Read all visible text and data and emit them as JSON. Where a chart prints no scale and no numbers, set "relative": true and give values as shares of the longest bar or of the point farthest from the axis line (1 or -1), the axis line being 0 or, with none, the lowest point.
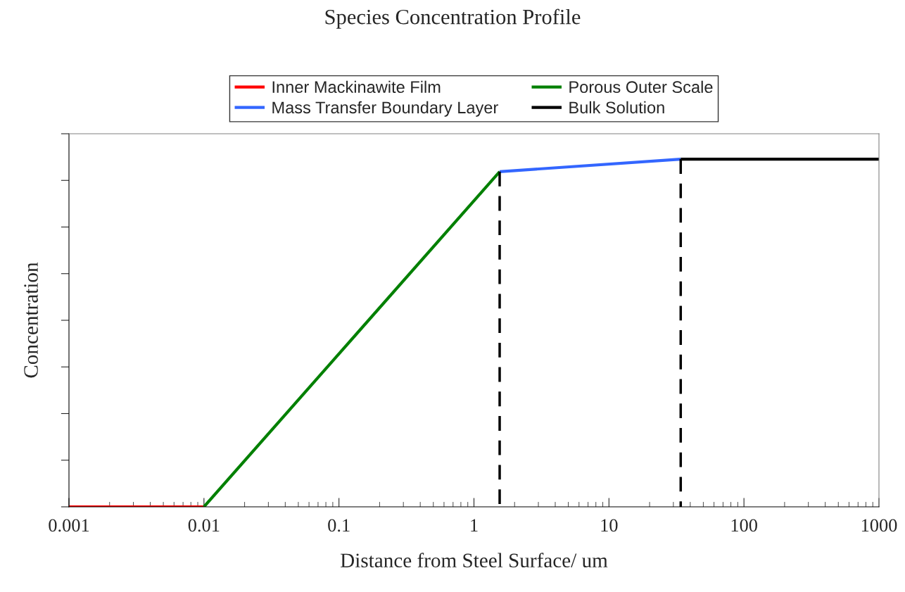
{
  "chart_data": {
    "type": "line",
    "title": "Species Concentration Profile",
    "xlabel": "Distance from Steel Surface/ um",
    "ylabel": "Concentration",
    "relative": true,
    "log": "x",
    "xlim": [
      0.001,
      1000
    ],
    "xticks": [
      0.001,
      0.01,
      0.1,
      1,
      10,
      100,
      1000
    ],
    "legend": "top",
    "grid": false,
    "marker": "none",
    "series": [
      {
        "name": "Inner Mackinawite Film",
        "color": "#ff0000",
        "x": [
          0.001,
          0.01
        ],
        "values": [
          0,
          0
        ]
      },
      {
        "name": "Porous Outer Scale",
        "color": "#008000",
        "x": [
          0.01,
          1.55
        ],
        "values": [
          0,
          0.964
        ]
      },
      {
        "name": "Mass Transfer Boundary Layer",
        "color": "#3366ff",
        "x": [
          1.55,
          34
        ],
        "values": [
          0.964,
          1
        ]
      },
      {
        "name": "Bulk Solution",
        "color": "#000000",
        "x": [
          34,
          1000
        ],
        "values": [
          1,
          1
        ]
      },
      {
        "color": "#000000",
        "line_style": "dashed",
        "x": [
          1.55,
          1.55
        ],
        "values": [
          0.964,
          0
        ]
      },
      {
        "color": "#000000",
        "line_style": "dashed",
        "x": [
          34,
          34
        ],
        "values": [
          1,
          0
        ]
      }
    ]
  }
}
